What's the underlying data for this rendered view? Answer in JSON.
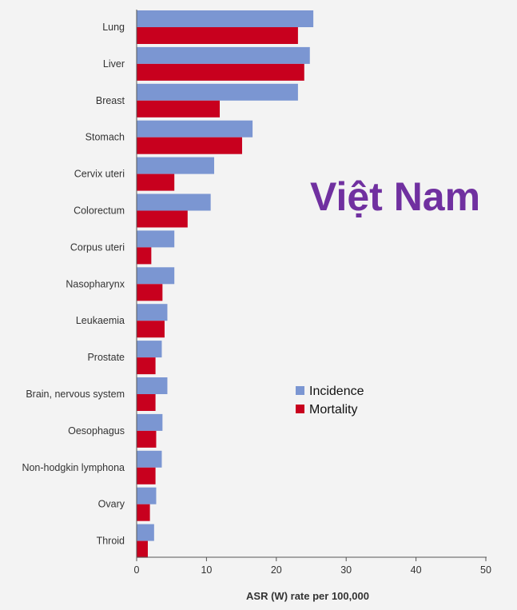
{
  "chart_data": {
    "type": "bar",
    "orientation": "horizontal",
    "title": "Việt Nam",
    "xlabel": "ASR (W) rate per 100,000",
    "ylabel": "",
    "xlim": [
      0,
      50
    ],
    "xticks": [
      0,
      10,
      20,
      30,
      40,
      50
    ],
    "grid": false,
    "legend_position": "center-right",
    "categories": [
      "Lung",
      "Liver",
      "Breast",
      "Stomach",
      "Cervix uteri",
      "Colorectum",
      "Corpus uteri",
      "Nasopharynx",
      "Leukaemia",
      "Prostate",
      "Brain, nervous system",
      "Oesophagus",
      "Non-hodgkin lymphona",
      "Ovary",
      "Throid"
    ],
    "series": [
      {
        "name": "Incidence",
        "color": "#7b96d2",
        "values": [
          25.3,
          24.8,
          23.1,
          16.6,
          11.1,
          10.6,
          5.4,
          5.4,
          4.4,
          3.6,
          4.4,
          3.7,
          3.6,
          2.8,
          2.5
        ]
      },
      {
        "name": "Mortality",
        "color": "#c8001e",
        "values": [
          23.1,
          24.0,
          11.9,
          15.1,
          5.4,
          7.3,
          2.1,
          3.7,
          4.0,
          2.7,
          2.7,
          2.8,
          2.7,
          1.9,
          1.6
        ]
      }
    ]
  }
}
